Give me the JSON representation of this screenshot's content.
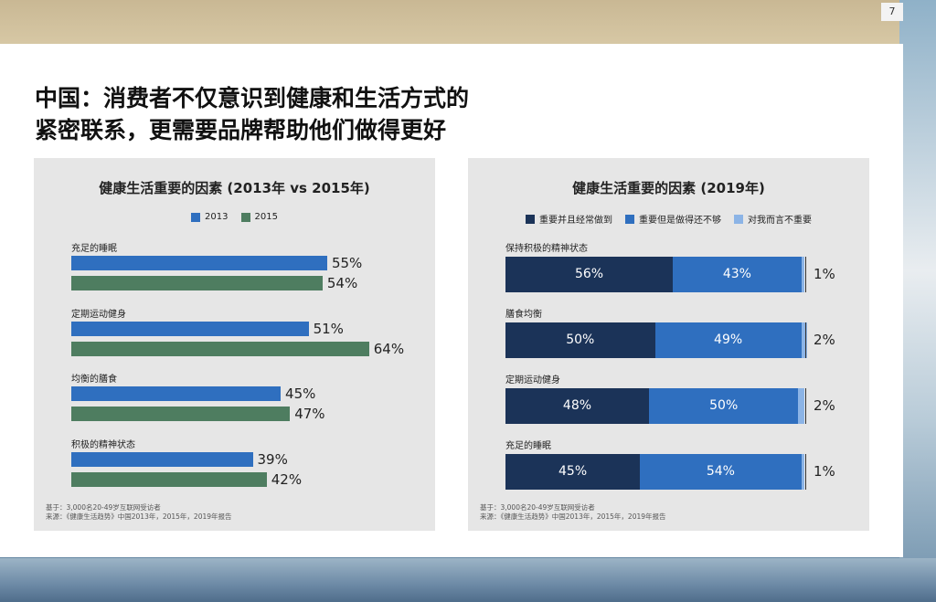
{
  "page": {
    "number": "7"
  },
  "header": {
    "title_line1": "中国：消费者不仅意识到健康和生活方式的",
    "title_line2": "紧密联系，更需要品牌帮助他们做得更好"
  },
  "colors": {
    "c2013": "#2f6fbf",
    "c2015": "#4e7d60",
    "dark": "#1b3358",
    "mid": "#2f6fbf",
    "light": "#8cb4e6"
  },
  "chart_data": [
    {
      "type": "bar",
      "orientation": "horizontal",
      "title": "健康生活重要的因素 (2013年 vs 2015年)",
      "categories": [
        "充足的睡眠",
        "定期运动健身",
        "均衡的膳食",
        "积极的精神状态"
      ],
      "series": [
        {
          "name": "2013",
          "values": [
            55,
            51,
            45,
            39
          ]
        },
        {
          "name": "2015",
          "values": [
            54,
            64,
            47,
            42
          ]
        }
      ],
      "value_labels": [
        [
          "55%",
          "54%"
        ],
        [
          "51%",
          "64%"
        ],
        [
          "45%",
          "47%"
        ],
        [
          "39%",
          "42%"
        ]
      ],
      "xlim": [
        0,
        100
      ],
      "footnote_line1": "基于：3,000名20-49岁互联网受访者",
      "footnote_line2": "来源：《健康生活趋势》中国2013年，2015年，2019年报告"
    },
    {
      "type": "bar",
      "orientation": "horizontal",
      "stacked": true,
      "title": "健康生活重要的因素 (2019年)",
      "categories": [
        "保持积极的精神状态",
        "膳食均衡",
        "定期运动健身",
        "充足的睡眠"
      ],
      "series": [
        {
          "name": "重要并且经常做到",
          "values": [
            56,
            50,
            48,
            45
          ]
        },
        {
          "name": "重要但是做得还不够",
          "values": [
            43,
            49,
            50,
            54
          ]
        },
        {
          "name": "对我而言不重要",
          "values": [
            1,
            2,
            2,
            1
          ]
        }
      ],
      "value_labels": [
        [
          "56%",
          "43%",
          "1%"
        ],
        [
          "50%",
          "49%",
          "2%"
        ],
        [
          "48%",
          "50%",
          "2%"
        ],
        [
          "45%",
          "54%",
          "1%"
        ]
      ],
      "xlim": [
        0,
        100
      ],
      "footnote_line1": "基于：3,000名20-49岁互联网受访者",
      "footnote_line2": "来源：《健康生活趋势》中国2013年，2015年，2019年报告"
    }
  ]
}
